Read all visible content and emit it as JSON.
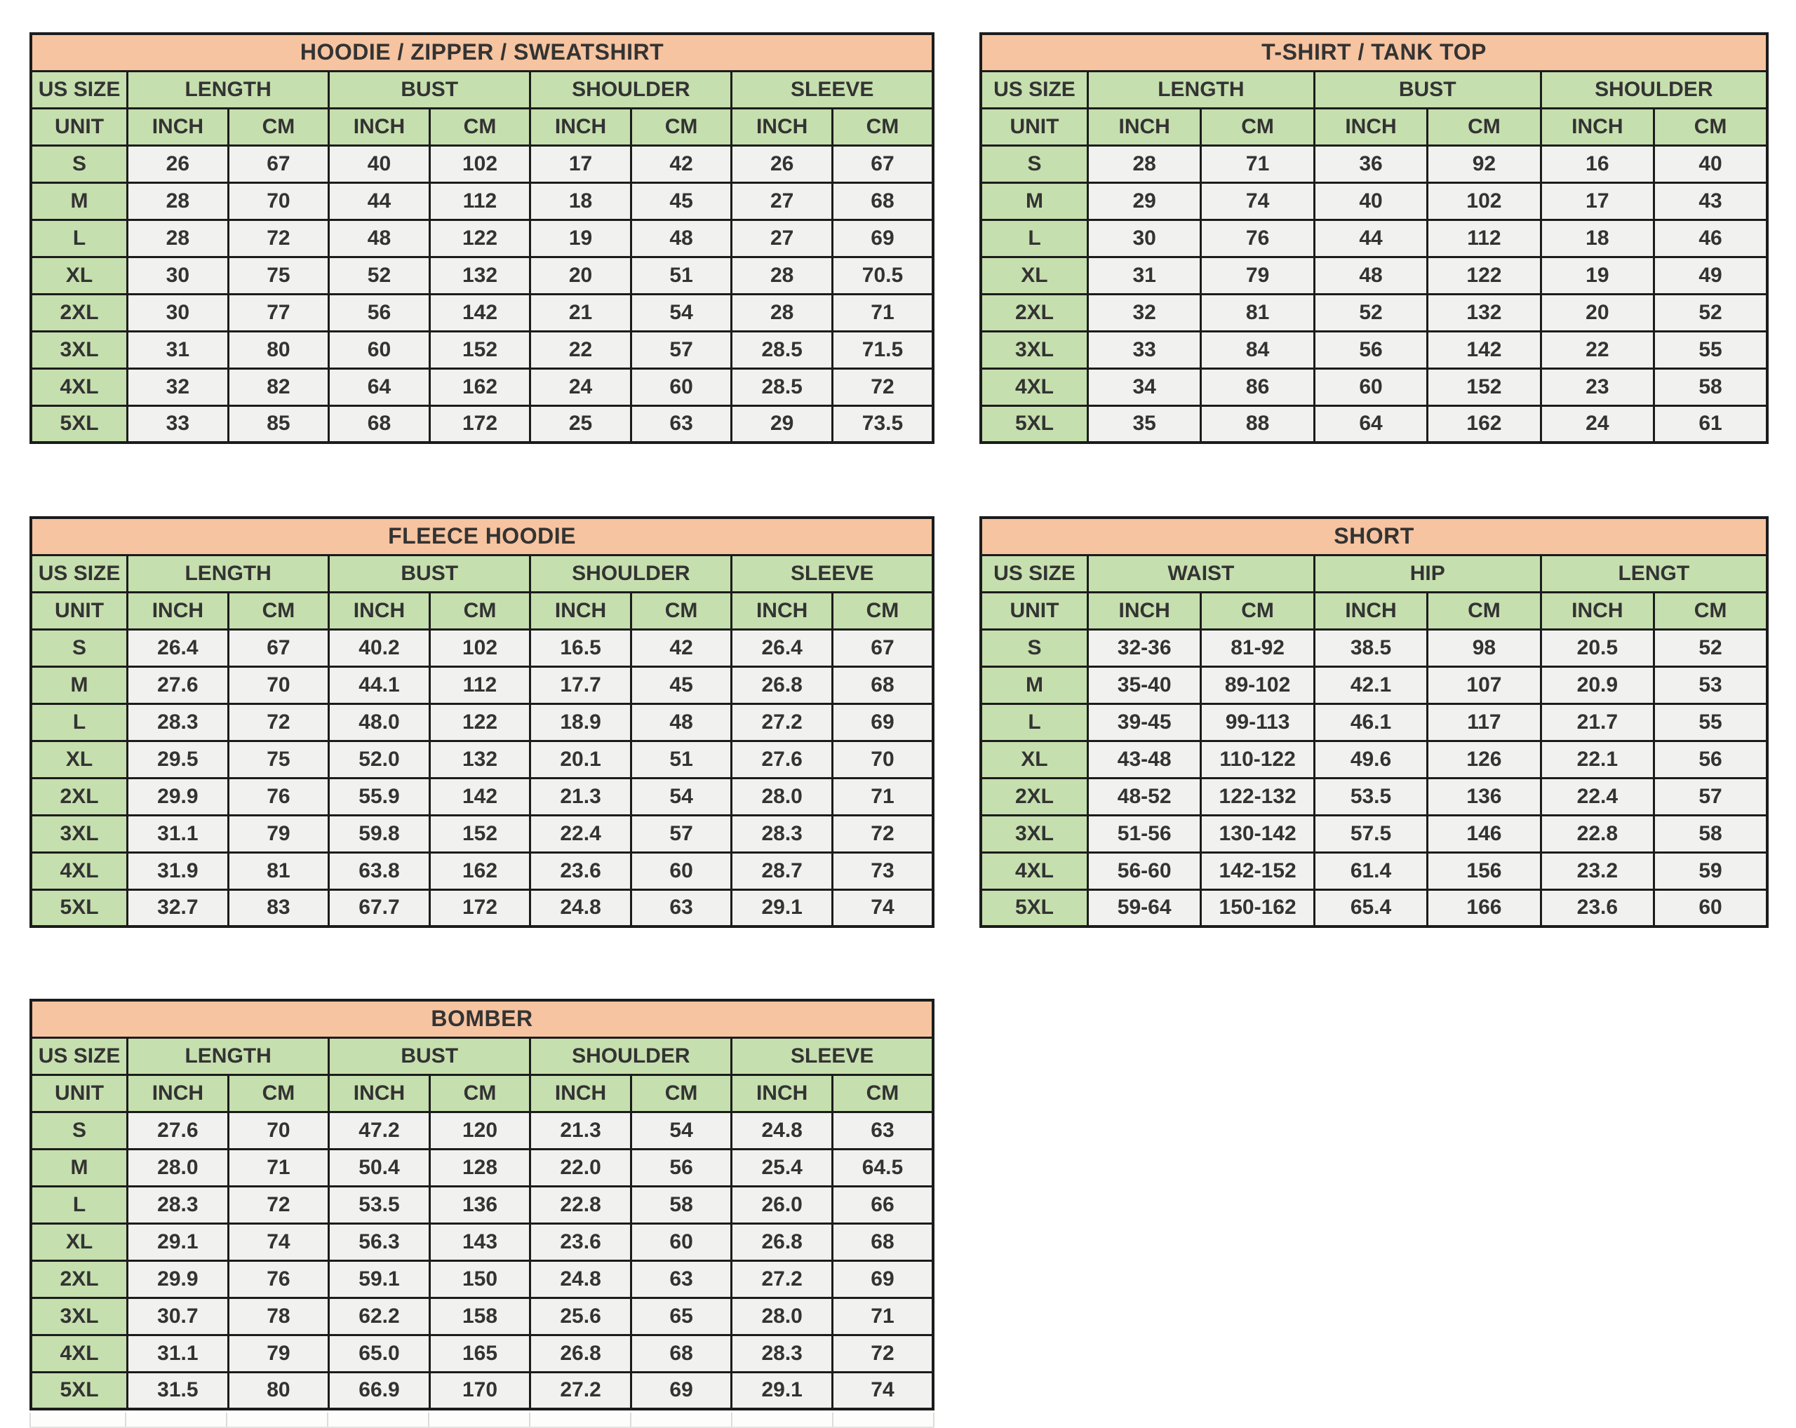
{
  "colors": {
    "title_bg": "#f6c4a0",
    "header_bg": "#c6dfae",
    "cell_bg": "#f1f1ef",
    "border": "#1c1c1c",
    "text": "#333333",
    "page_bg": "#ffffff"
  },
  "tables": [
    {
      "id": "hoodie-zipper-sweatshirt",
      "title": "HOODIE / ZIPPER / SWEATSHIRT",
      "size_header": "US SIZE",
      "unit_label": "UNIT",
      "groups": [
        "LENGTH",
        "BUST",
        "SHOULDER",
        "SLEEVE"
      ],
      "units": [
        "INCH",
        "CM",
        "INCH",
        "CM",
        "INCH",
        "CM",
        "INCH",
        "CM"
      ],
      "rows": [
        {
          "size": "S",
          "values": [
            "26",
            "67",
            "40",
            "102",
            "17",
            "42",
            "26",
            "67"
          ]
        },
        {
          "size": "M",
          "values": [
            "28",
            "70",
            "44",
            "112",
            "18",
            "45",
            "27",
            "68"
          ]
        },
        {
          "size": "L",
          "values": [
            "28",
            "72",
            "48",
            "122",
            "19",
            "48",
            "27",
            "69"
          ]
        },
        {
          "size": "XL",
          "values": [
            "30",
            "75",
            "52",
            "132",
            "20",
            "51",
            "28",
            "70.5"
          ]
        },
        {
          "size": "2XL",
          "values": [
            "30",
            "77",
            "56",
            "142",
            "21",
            "54",
            "28",
            "71"
          ]
        },
        {
          "size": "3XL",
          "values": [
            "31",
            "80",
            "60",
            "152",
            "22",
            "57",
            "28.5",
            "71.5"
          ]
        },
        {
          "size": "4XL",
          "values": [
            "32",
            "82",
            "64",
            "162",
            "24",
            "60",
            "28.5",
            "72"
          ]
        },
        {
          "size": "5XL",
          "values": [
            "33",
            "85",
            "68",
            "172",
            "25",
            "63",
            "29",
            "73.5"
          ]
        }
      ]
    },
    {
      "id": "tshirt-tank-top",
      "title": "T-SHIRT / TANK TOP",
      "size_header": "US SIZE",
      "unit_label": "UNIT",
      "groups": [
        "LENGTH",
        "BUST",
        "SHOULDER"
      ],
      "units": [
        "INCH",
        "CM",
        "INCH",
        "CM",
        "INCH",
        "CM"
      ],
      "rows": [
        {
          "size": "S",
          "values": [
            "28",
            "71",
            "36",
            "92",
            "16",
            "40"
          ]
        },
        {
          "size": "M",
          "values": [
            "29",
            "74",
            "40",
            "102",
            "17",
            "43"
          ]
        },
        {
          "size": "L",
          "values": [
            "30",
            "76",
            "44",
            "112",
            "18",
            "46"
          ]
        },
        {
          "size": "XL",
          "values": [
            "31",
            "79",
            "48",
            "122",
            "19",
            "49"
          ]
        },
        {
          "size": "2XL",
          "values": [
            "32",
            "81",
            "52",
            "132",
            "20",
            "52"
          ]
        },
        {
          "size": "3XL",
          "values": [
            "33",
            "84",
            "56",
            "142",
            "22",
            "55"
          ]
        },
        {
          "size": "4XL",
          "values": [
            "34",
            "86",
            "60",
            "152",
            "23",
            "58"
          ]
        },
        {
          "size": "5XL",
          "values": [
            "35",
            "88",
            "64",
            "162",
            "24",
            "61"
          ]
        }
      ]
    },
    {
      "id": "fleece-hoodie",
      "title": "FLEECE HOODIE",
      "size_header": "US SIZE",
      "unit_label": "UNIT",
      "groups": [
        "LENGTH",
        "BUST",
        "SHOULDER",
        "SLEEVE"
      ],
      "units": [
        "INCH",
        "CM",
        "INCH",
        "CM",
        "INCH",
        "CM",
        "INCH",
        "CM"
      ],
      "rows": [
        {
          "size": "S",
          "values": [
            "26.4",
            "67",
            "40.2",
            "102",
            "16.5",
            "42",
            "26.4",
            "67"
          ]
        },
        {
          "size": "M",
          "values": [
            "27.6",
            "70",
            "44.1",
            "112",
            "17.7",
            "45",
            "26.8",
            "68"
          ]
        },
        {
          "size": "L",
          "values": [
            "28.3",
            "72",
            "48.0",
            "122",
            "18.9",
            "48",
            "27.2",
            "69"
          ]
        },
        {
          "size": "XL",
          "values": [
            "29.5",
            "75",
            "52.0",
            "132",
            "20.1",
            "51",
            "27.6",
            "70"
          ]
        },
        {
          "size": "2XL",
          "values": [
            "29.9",
            "76",
            "55.9",
            "142",
            "21.3",
            "54",
            "28.0",
            "71"
          ]
        },
        {
          "size": "3XL",
          "values": [
            "31.1",
            "79",
            "59.8",
            "152",
            "22.4",
            "57",
            "28.3",
            "72"
          ]
        },
        {
          "size": "4XL",
          "values": [
            "31.9",
            "81",
            "63.8",
            "162",
            "23.6",
            "60",
            "28.7",
            "73"
          ]
        },
        {
          "size": "5XL",
          "values": [
            "32.7",
            "83",
            "67.7",
            "172",
            "24.8",
            "63",
            "29.1",
            "74"
          ]
        }
      ]
    },
    {
      "id": "short",
      "title": "SHORT",
      "size_header": "US SIZE",
      "unit_label": "UNIT",
      "groups": [
        "WAIST",
        "HIP",
        "LENGT"
      ],
      "units": [
        "INCH",
        "CM",
        "INCH",
        "CM",
        "INCH",
        "CM"
      ],
      "rows": [
        {
          "size": "S",
          "values": [
            "32-36",
            "81-92",
            "38.5",
            "98",
            "20.5",
            "52"
          ]
        },
        {
          "size": "M",
          "values": [
            "35-40",
            "89-102",
            "42.1",
            "107",
            "20.9",
            "53"
          ]
        },
        {
          "size": "L",
          "values": [
            "39-45",
            "99-113",
            "46.1",
            "117",
            "21.7",
            "55"
          ]
        },
        {
          "size": "XL",
          "values": [
            "43-48",
            "110-122",
            "49.6",
            "126",
            "22.1",
            "56"
          ]
        },
        {
          "size": "2XL",
          "values": [
            "48-52",
            "122-132",
            "53.5",
            "136",
            "22.4",
            "57"
          ]
        },
        {
          "size": "3XL",
          "values": [
            "51-56",
            "130-142",
            "57.5",
            "146",
            "22.8",
            "58"
          ]
        },
        {
          "size": "4XL",
          "values": [
            "56-60",
            "142-152",
            "61.4",
            "156",
            "23.2",
            "59"
          ]
        },
        {
          "size": "5XL",
          "values": [
            "59-64",
            "150-162",
            "65.4",
            "166",
            "23.6",
            "60"
          ]
        }
      ]
    },
    {
      "id": "bomber",
      "title": "BOMBER",
      "size_header": "US SIZE",
      "unit_label": "UNIT",
      "groups": [
        "LENGTH",
        "BUST",
        "SHOULDER",
        "SLEEVE"
      ],
      "units": [
        "INCH",
        "CM",
        "INCH",
        "CM",
        "INCH",
        "CM",
        "INCH",
        "CM"
      ],
      "rows": [
        {
          "size": "S",
          "values": [
            "27.6",
            "70",
            "47.2",
            "120",
            "21.3",
            "54",
            "24.8",
            "63"
          ]
        },
        {
          "size": "M",
          "values": [
            "28.0",
            "71",
            "50.4",
            "128",
            "22.0",
            "56",
            "25.4",
            "64.5"
          ]
        },
        {
          "size": "L",
          "values": [
            "28.3",
            "72",
            "53.5",
            "136",
            "22.8",
            "58",
            "26.0",
            "66"
          ]
        },
        {
          "size": "XL",
          "values": [
            "29.1",
            "74",
            "56.3",
            "143",
            "23.6",
            "60",
            "26.8",
            "68"
          ]
        },
        {
          "size": "2XL",
          "values": [
            "29.9",
            "76",
            "59.1",
            "150",
            "24.8",
            "63",
            "27.2",
            "69"
          ]
        },
        {
          "size": "3XL",
          "values": [
            "30.7",
            "78",
            "62.2",
            "158",
            "25.6",
            "65",
            "28.0",
            "71"
          ]
        },
        {
          "size": "4XL",
          "values": [
            "31.1",
            "79",
            "65.0",
            "165",
            "26.8",
            "68",
            "28.3",
            "72"
          ]
        },
        {
          "size": "5XL",
          "values": [
            "31.5",
            "80",
            "66.9",
            "170",
            "27.2",
            "69",
            "29.1",
            "74"
          ]
        }
      ]
    }
  ]
}
